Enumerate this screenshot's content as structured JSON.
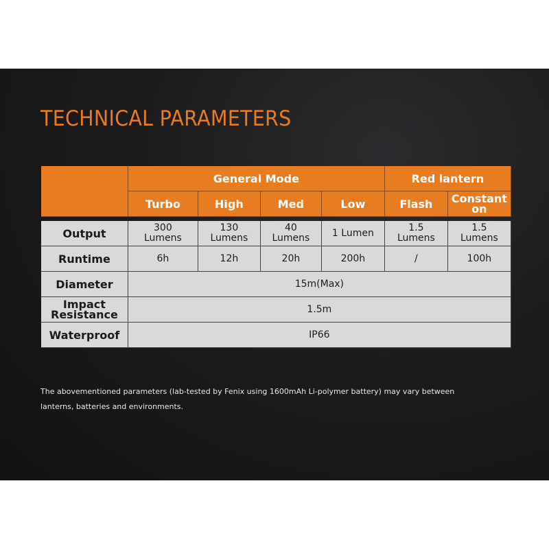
{
  "title": "TECHNICAL PARAMETERS",
  "table": {
    "group_headers": [
      "General Mode",
      "Red lantern"
    ],
    "mode_headers": [
      "Turbo",
      "High",
      "Med",
      "Low",
      "Flash",
      "Constant on"
    ],
    "rows": [
      {
        "label": "Output",
        "values": [
          "300 Lumens",
          "130 Lumens",
          "40 Lumens",
          "1 Lumen",
          "1.5 Lumens",
          "1.5 Lumens"
        ]
      },
      {
        "label": "Runtime",
        "values": [
          "6h",
          "12h",
          "20h",
          "200h",
          "/",
          "100h"
        ]
      },
      {
        "label": "Diameter",
        "value": "15m(Max)"
      },
      {
        "label": "Impact Resistance",
        "value": "1.5m"
      },
      {
        "label": "Waterproof",
        "value": "IP66"
      }
    ]
  },
  "note": "The abovementioned parameters (lab-tested by Fenix using 1600mAh Li-polymer battery) may vary between lanterns, batteries and environments.",
  "colors": {
    "accent": "#e87c20",
    "cell": "#d9d9da",
    "background": "#1c1c1e"
  }
}
